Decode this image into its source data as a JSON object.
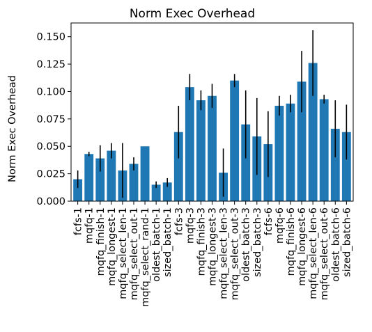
{
  "chart_data": {
    "type": "bar",
    "title": "Norm Exec Overhead",
    "xlabel": "",
    "ylabel": "Norm Exec Overhead",
    "ylim": [
      0,
      0.1625
    ],
    "yticks": [
      "0.000",
      "0.025",
      "0.050",
      "0.075",
      "0.100",
      "0.125",
      "0.150"
    ],
    "grid": false,
    "bar_color": "#1f77b4",
    "error_color": "#000000",
    "categories": [
      "fcfs-1",
      "mqfq-1",
      "mqfq_finish-1",
      "mqfq_longest-1",
      "mqfq_select_len-1",
      "mqfq_select_out-1",
      "mqfq_select_rand-1",
      "oldest_batch-1",
      "sized_batch-1",
      "fcfs-3",
      "mqfq-3",
      "mqfq_finish-3",
      "mqfq_longest-3",
      "mqfq_select_len-3",
      "mqfq_select_out-3",
      "oldest_batch-3",
      "sized_batch-3",
      "fcfs-6",
      "mqfq-6",
      "mqfq_finish-6",
      "mqfq_longest-6",
      "mqfq_select_len-6",
      "mqfq_select_out-6",
      "oldest_batch-6",
      "sized_batch-6"
    ],
    "values": [
      0.02,
      0.043,
      0.039,
      0.046,
      0.028,
      0.034,
      0.05,
      0.015,
      0.017,
      0.063,
      0.104,
      0.092,
      0.096,
      0.026,
      0.11,
      0.07,
      0.059,
      0.052,
      0.087,
      0.089,
      0.109,
      0.126,
      0.093,
      0.066,
      0.063
    ],
    "errors": [
      0.008,
      0.002,
      0.012,
      0.007,
      0.025,
      0.006,
      0.0,
      0.003,
      0.004,
      0.024,
      0.012,
      0.009,
      0.011,
      0.022,
      0.006,
      0.031,
      0.035,
      0.03,
      0.009,
      0.008,
      0.028,
      0.03,
      0.004,
      0.026,
      0.025
    ]
  }
}
